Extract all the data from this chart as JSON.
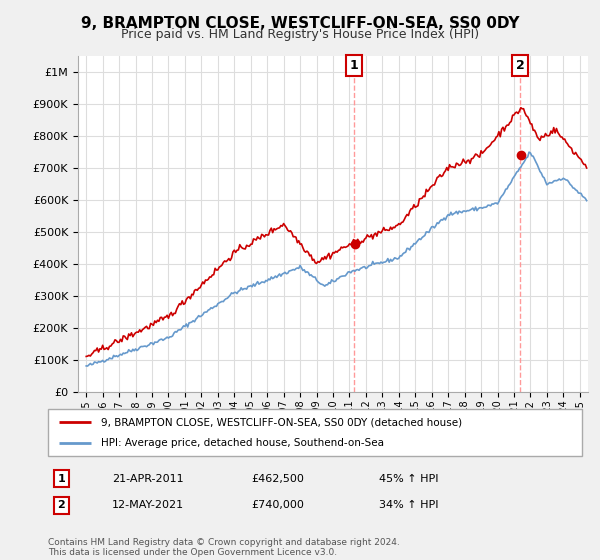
{
  "title": "9, BRAMPTON CLOSE, WESTCLIFF-ON-SEA, SS0 0DY",
  "subtitle": "Price paid vs. HM Land Registry's House Price Index (HPI)",
  "hpi_label": "HPI: Average price, detached house, Southend-on-Sea",
  "property_label": "9, BRAMPTON CLOSE, WESTCLIFF-ON-SEA, SS0 0DY (detached house)",
  "footer": "Contains HM Land Registry data © Crown copyright and database right 2024.\nThis data is licensed under the Open Government Licence v3.0.",
  "transaction1_date": "21-APR-2011",
  "transaction1_price": "£462,500",
  "transaction1_hpi": "45% ↑ HPI",
  "transaction2_date": "12-MAY-2021",
  "transaction2_price": "£740,000",
  "transaction2_hpi": "34% ↑ HPI",
  "property_color": "#cc0000",
  "hpi_color": "#6699cc",
  "vline_color": "#ff9999",
  "dot_color": "#cc0000",
  "background_chart": "#ffffff",
  "grid_color": "#dddddd",
  "ylim_min": 0,
  "ylim_max": 1050000,
  "xlabel_start_year": 1995,
  "xlabel_end_year": 2025
}
